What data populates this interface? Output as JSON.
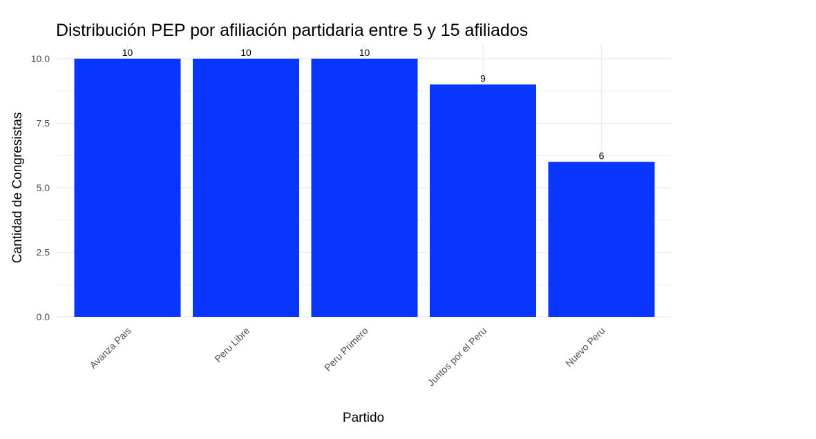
{
  "chart_data": {
    "type": "bar",
    "title": "Distribución PEP por afiliación partidaria entre 5 y 15 afiliados",
    "xlabel": "Partido",
    "ylabel": "Cantidad de Congresistas",
    "categories": [
      "Avanza Pais",
      "Peru Libre",
      "Peru Primero",
      "Juntos por el Peru",
      "Nuevo Peru"
    ],
    "values": [
      10,
      10,
      10,
      9,
      6
    ],
    "data_labels": [
      "10",
      "10",
      "10",
      "9",
      "6"
    ],
    "ylim": [
      0,
      10.5
    ],
    "y_ticks": [
      0,
      2.5,
      5,
      7.5,
      10
    ],
    "y_tick_labels": [
      "0.0",
      "2.5",
      "5.0",
      "7.5",
      "10.0"
    ],
    "grid": true,
    "bar_color": "#0836FF",
    "grid_color": "#EBEBEB"
  }
}
